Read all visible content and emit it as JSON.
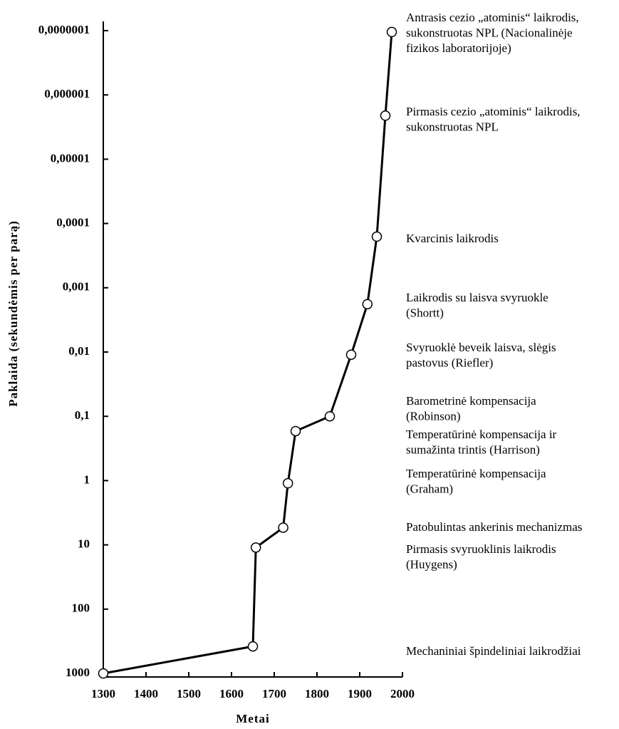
{
  "chart_data": {
    "type": "line",
    "x_label": "Metai",
    "y_label": "Paklaida (sekundėmis per parą)",
    "x": [
      1300,
      1650,
      1657,
      1721,
      1732,
      1750,
      1830,
      1880,
      1918,
      1940,
      1960,
      1975
    ],
    "values": [
      1000,
      380,
      11,
      5.4,
      1.1,
      0.17,
      0.1,
      0.011,
      0.0018,
      0.00016,
      2.1e-06,
      1.05e-07
    ],
    "color": "#000000",
    "xlim": [
      1300,
      2000
    ],
    "xticks": [
      1300,
      1400,
      1500,
      1600,
      1700,
      1800,
      1900,
      2000
    ],
    "ylim": [
      1000,
      1e-07
    ],
    "y_log": true,
    "yticks": [
      1000,
      100,
      10,
      1,
      {
        "value": 0.1,
        "label": "0,1"
      },
      {
        "value": 0.01,
        "label": "0,01"
      },
      {
        "value": 0.001,
        "label": "0,001"
      },
      {
        "value": 0.0001,
        "label": "0,0001"
      },
      {
        "value": 1e-05,
        "label": "0,00001"
      },
      {
        "value": 1e-06,
        "label": "0,000001"
      },
      {
        "value": 1e-07,
        "label": "0,0000001"
      }
    ],
    "grid": false,
    "annotations": [
      [
        "Antrasis cezio „atominis“ laikrodis,",
        "sukonstruotas NPL (Nacionalinėje",
        "fizikos laboratorijoje)"
      ],
      [
        "Pirmasis cezio „atominis“ laikrodis,",
        "sukonstruotas NPL"
      ],
      [
        "Kvarcinis laikrodis"
      ],
      [
        "Laikrodis su laisva svyruokle",
        "(Shortt)"
      ],
      [
        "Svyruoklė beveik laisva, slėgis",
        "pastovus (Riefler)"
      ],
      [
        "Barometrinė kompensacija",
        "(Robinson)"
      ],
      [
        "Temperatūrinė kompensacija ir",
        "sumažinta trintis (Harrison)"
      ],
      [
        "Temperatūrinė kompensacija",
        "(Graham)"
      ],
      [
        "Patobulintas ankerinis mechanizmas"
      ],
      [
        "Pirmasis svyruoklinis laikrodis",
        "(Huygens)"
      ],
      [
        "Mechaniniai špindeliniai laikrodžiai"
      ]
    ]
  }
}
